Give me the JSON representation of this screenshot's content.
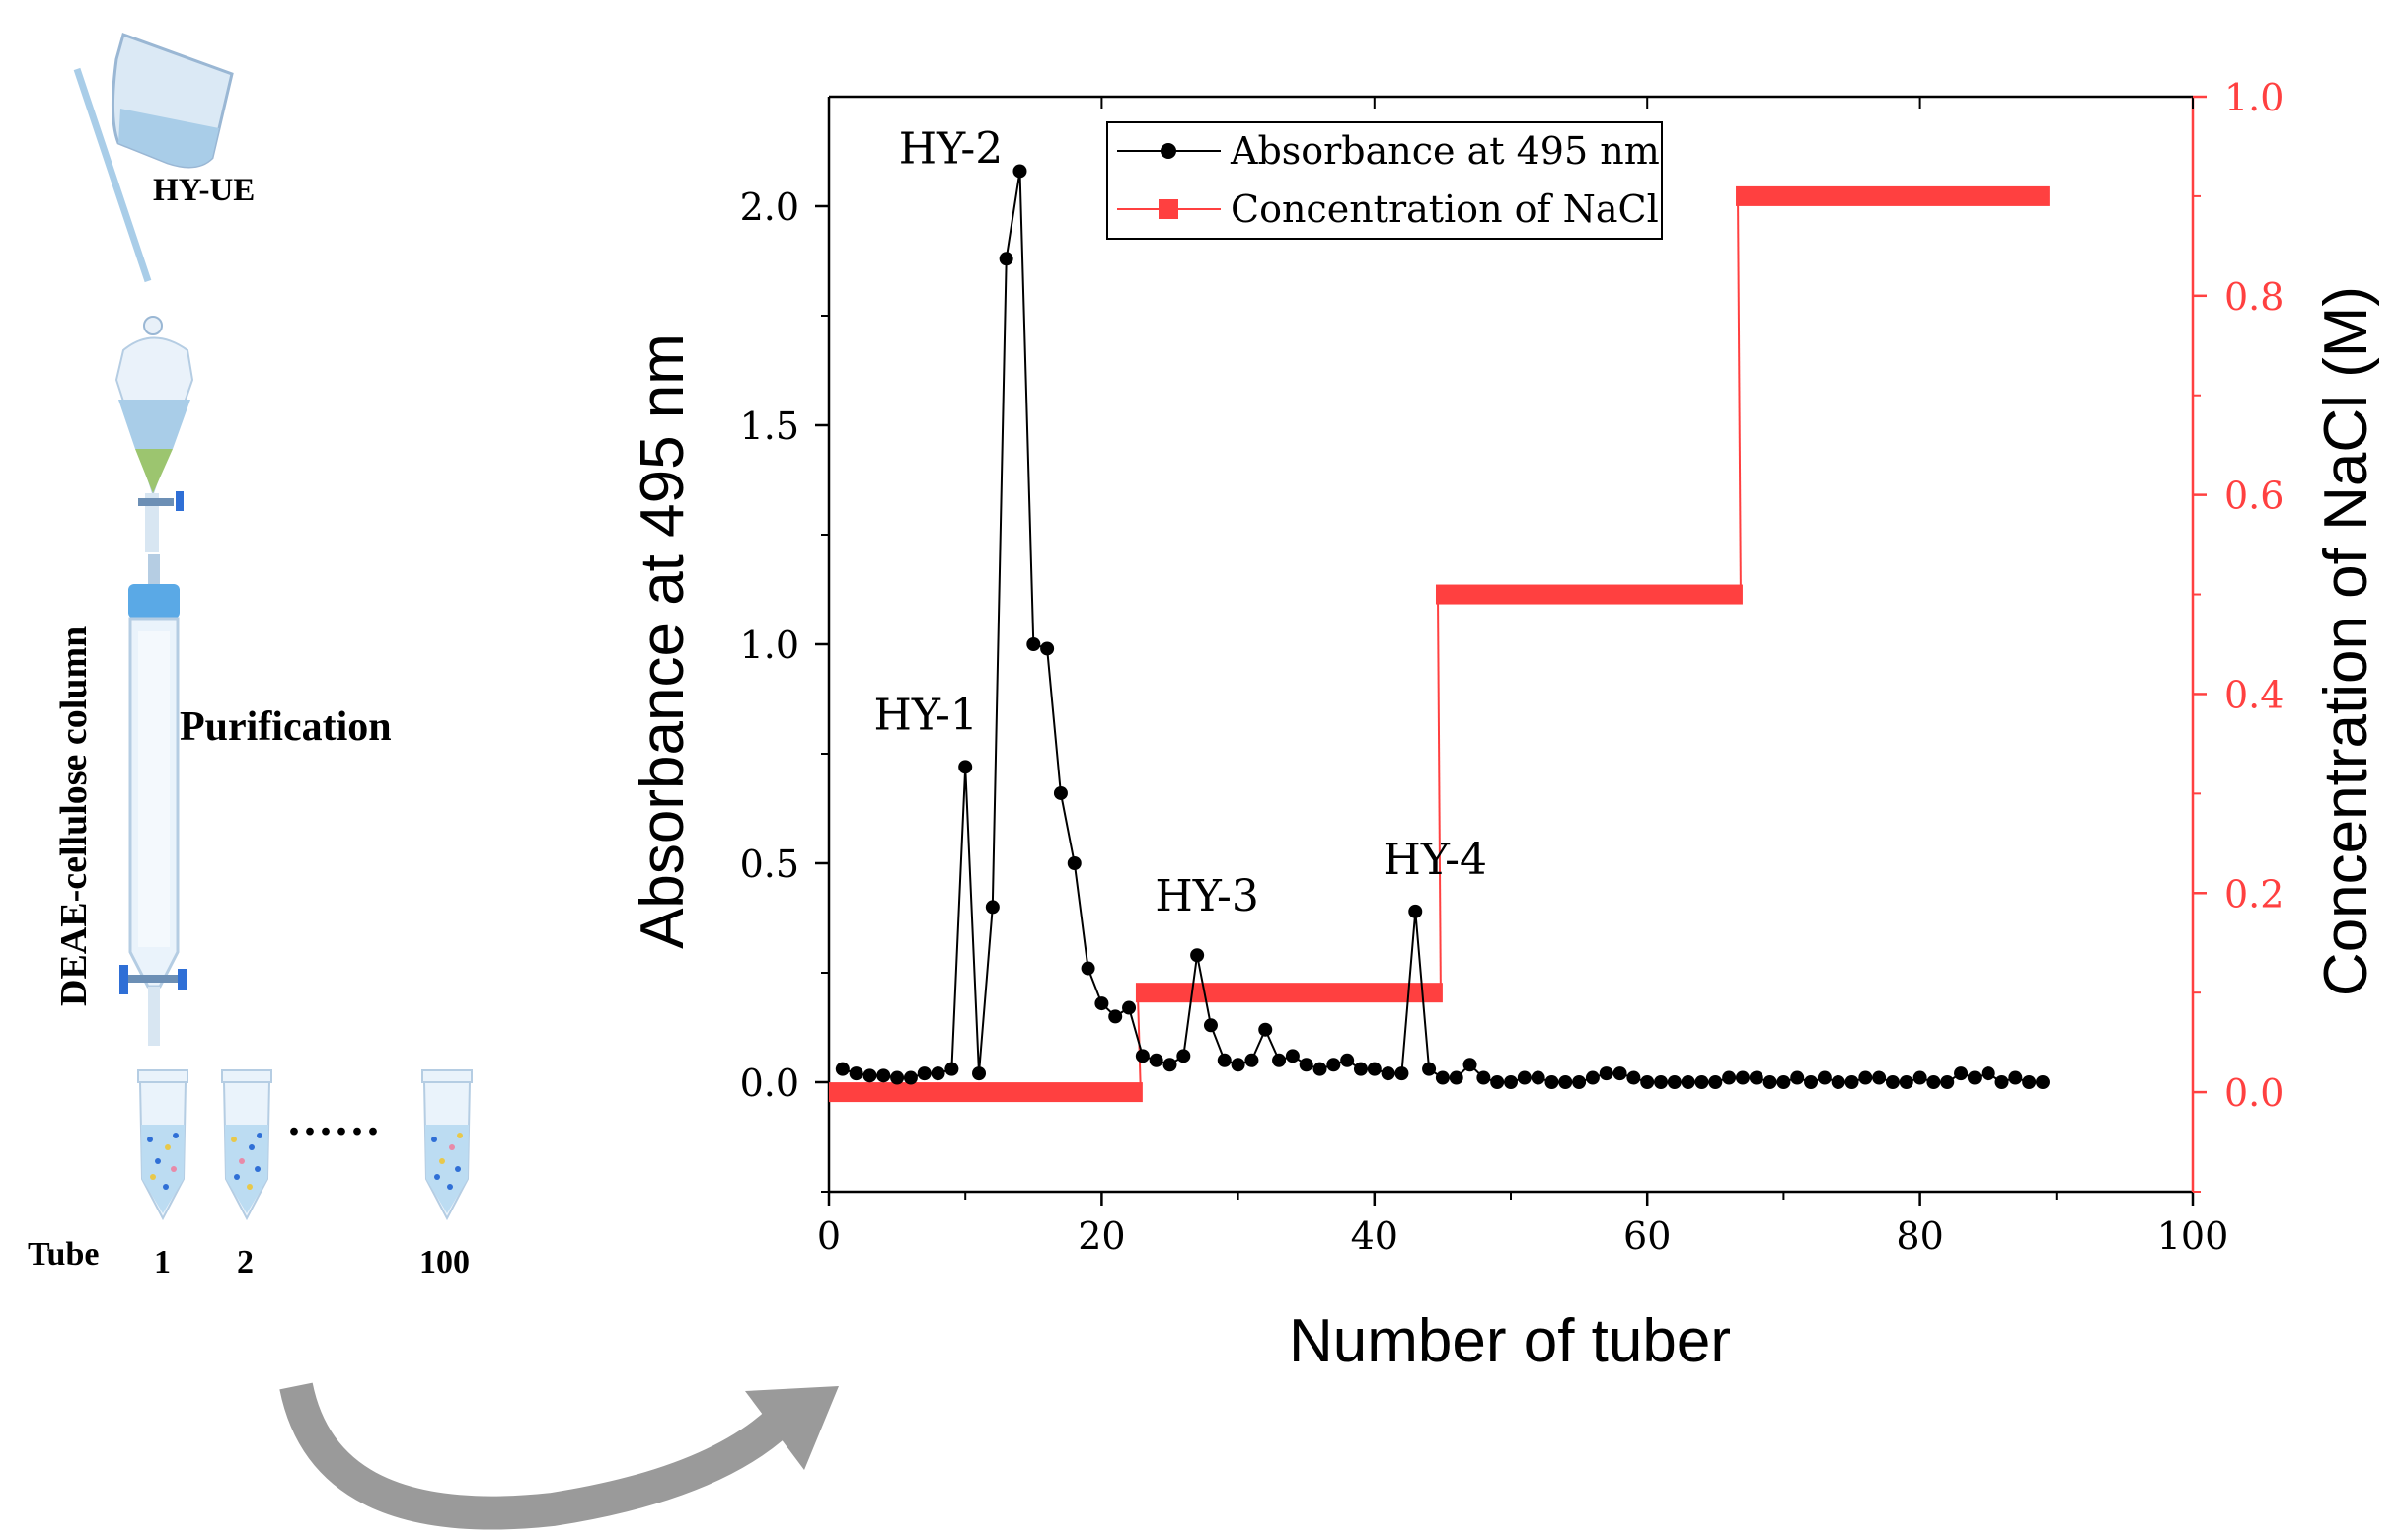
{
  "left_panel": {
    "sample_label": "HY-UE",
    "column_label": "DEAE-cellulose column",
    "step_label": "Purification",
    "tube_label": "Tube",
    "tube_numbers": [
      "1",
      "2",
      "100"
    ],
    "ellipsis": "......"
  },
  "colors": {
    "absorbance": "#000000",
    "nacl": "#ff4040",
    "arrow": "#9a9a9a"
  },
  "chart_data": {
    "type": "line",
    "xlabel": "Number of tuber",
    "ylabel": "Absorbance at 495 nm",
    "y2label": "Concentration of NaCl (M)",
    "xlim": [
      0,
      100
    ],
    "ylim": [
      -0.25,
      2.25
    ],
    "y2lim": [
      -0.1,
      1.0
    ],
    "xticks": [
      "0",
      "20",
      "40",
      "60",
      "80",
      "100"
    ],
    "yticks": [
      "0.0",
      "0.5",
      "1.0",
      "1.5",
      "2.0"
    ],
    "y2ticks": [
      "0.0",
      "0.2",
      "0.4",
      "0.6",
      "0.8",
      "1.0"
    ],
    "legend_position": "top-left",
    "series": [
      {
        "name": "Absorbance at 495 nm",
        "axis": "left",
        "x": [
          1,
          2,
          3,
          4,
          5,
          6,
          7,
          8,
          9,
          10,
          11,
          12,
          13,
          14,
          15,
          16,
          17,
          18,
          19,
          20,
          21,
          22,
          23,
          24,
          25,
          26,
          27,
          28,
          29,
          30,
          31,
          32,
          33,
          34,
          35,
          36,
          37,
          38,
          39,
          40,
          41,
          42,
          43,
          44,
          45,
          46,
          47,
          48,
          49,
          50,
          51,
          52,
          53,
          54,
          55,
          56,
          57,
          58,
          59,
          60,
          61,
          62,
          63,
          64,
          65,
          66,
          67,
          68,
          69,
          70,
          71,
          72,
          73,
          74,
          75,
          76,
          77,
          78,
          79,
          80,
          81,
          82,
          83,
          84,
          85,
          86,
          87,
          88,
          89
        ],
        "values": [
          0.03,
          0.02,
          0.015,
          0.015,
          0.01,
          0.01,
          0.02,
          0.02,
          0.03,
          0.72,
          0.02,
          0.4,
          1.88,
          2.08,
          1.0,
          0.99,
          0.66,
          0.5,
          0.26,
          0.18,
          0.15,
          0.17,
          0.06,
          0.05,
          0.04,
          0.06,
          0.29,
          0.13,
          0.05,
          0.04,
          0.05,
          0.12,
          0.05,
          0.06,
          0.04,
          0.03,
          0.04,
          0.05,
          0.03,
          0.03,
          0.02,
          0.02,
          0.39,
          0.03,
          0.01,
          0.01,
          0.04,
          0.01,
          0.0,
          0.0,
          0.01,
          0.01,
          0.0,
          0.0,
          0.0,
          0.01,
          0.02,
          0.02,
          0.01,
          0.0,
          0.0,
          0.0,
          0.0,
          0.0,
          0.0,
          0.01,
          0.01,
          0.01,
          0.0,
          0.0,
          0.01,
          0.0,
          0.01,
          0.0,
          0.0,
          0.01,
          0.01,
          0.0,
          0.0,
          0.01,
          0.0,
          0.0,
          0.02,
          0.01,
          0.02,
          0.0,
          0.01,
          0.0,
          0.0
        ]
      },
      {
        "name": "Concentration of NaCl",
        "axis": "right",
        "steps": [
          {
            "x_start": 0,
            "x_end": 23,
            "value": 0.0
          },
          {
            "x_start": 22.5,
            "x_end": 45,
            "value": 0.1
          },
          {
            "x_start": 44.5,
            "x_end": 67,
            "value": 0.5
          },
          {
            "x_start": 66.5,
            "x_end": 89.5,
            "value": 0.9
          }
        ]
      }
    ],
    "annotations": [
      {
        "text": "HY-1",
        "x": 10,
        "y": 0.72
      },
      {
        "text": "HY-2",
        "x": 14,
        "y": 2.08
      },
      {
        "text": "HY-3",
        "x": 27,
        "y": 0.29
      },
      {
        "text": "HY-4",
        "x": 43,
        "y": 0.39
      }
    ]
  }
}
